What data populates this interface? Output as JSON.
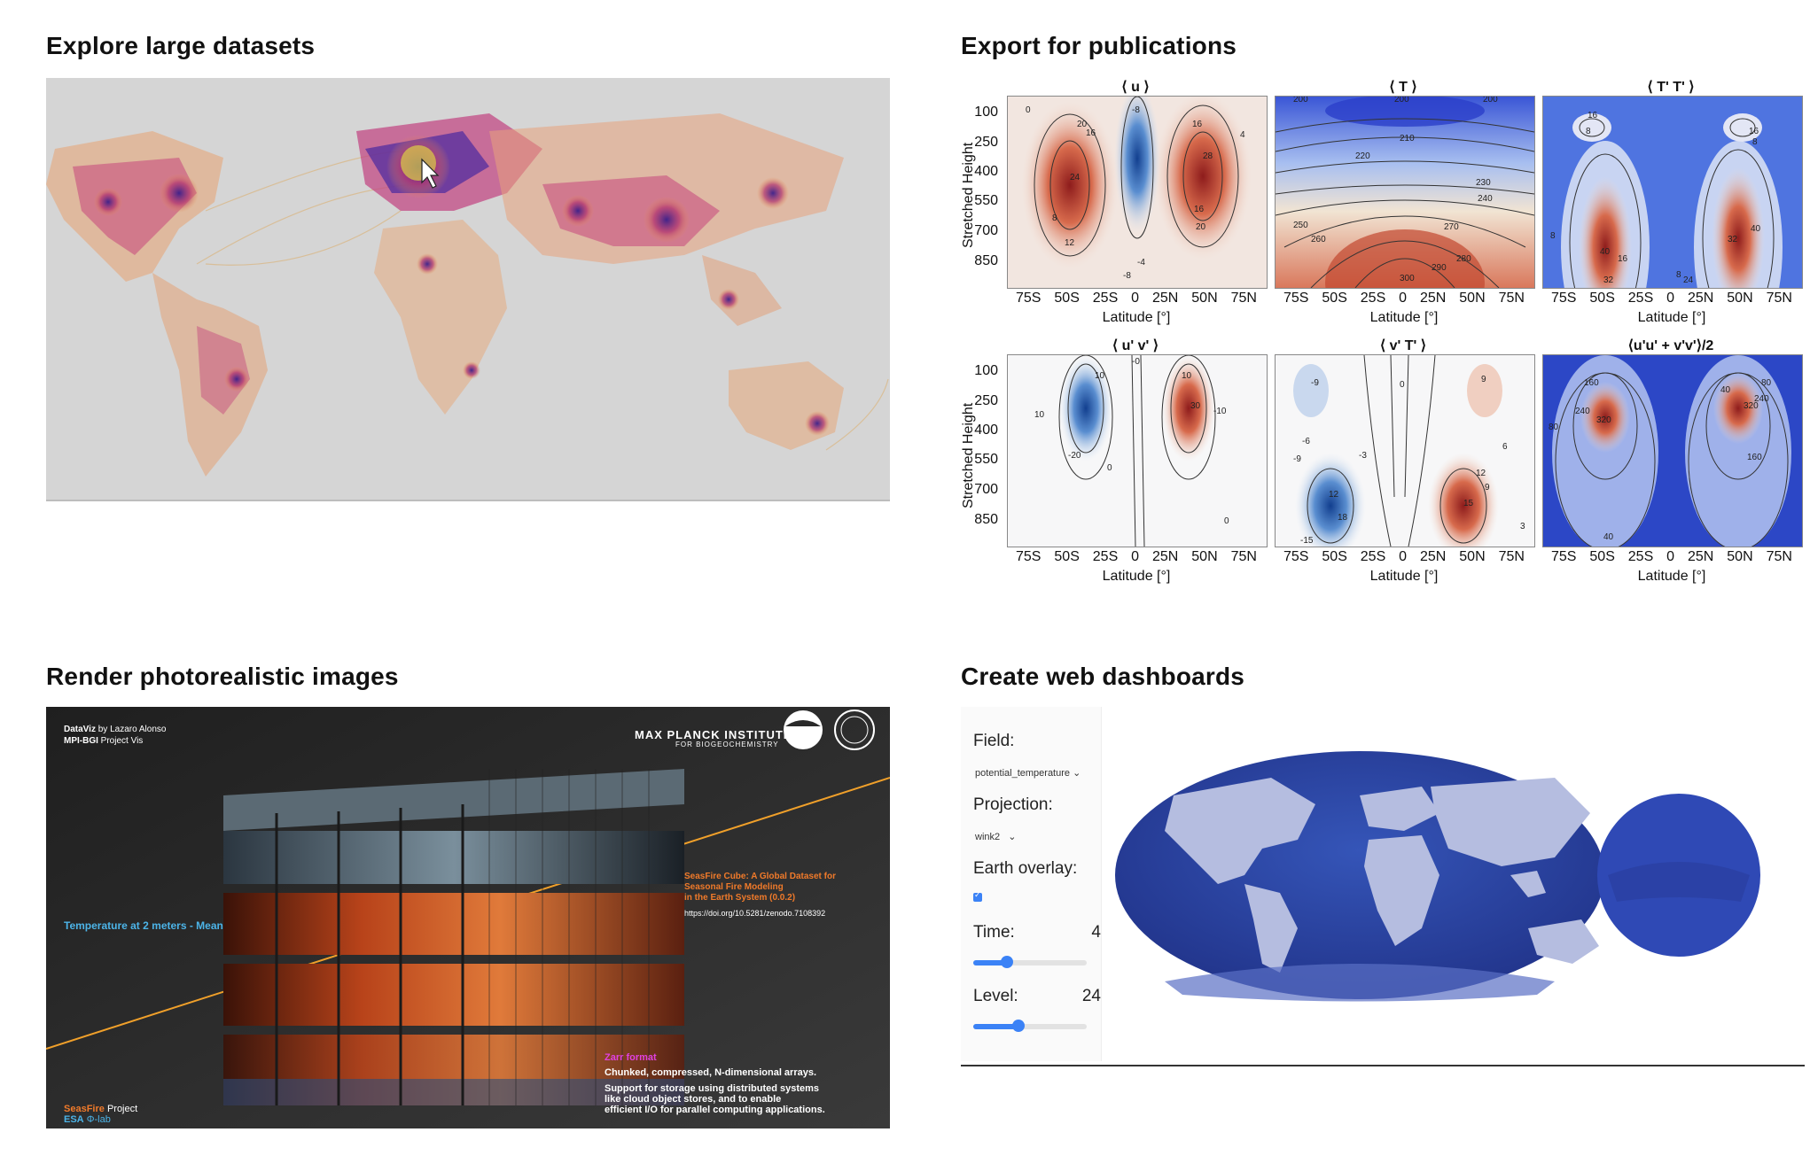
{
  "headings": {
    "explore": "Explore large datasets",
    "export": "Export for publications",
    "render": "Render photorealistic images",
    "dashboards": "Create web dashboards"
  },
  "publications": {
    "ylabel": "Stretched Height",
    "xlabel": "Latitude [°]",
    "yticks": [
      "100",
      "250",
      "400",
      "550",
      "700",
      "850"
    ],
    "xticks": [
      "75S",
      "50S",
      "25S",
      "0",
      "25N",
      "50N",
      "75N"
    ],
    "plots": [
      {
        "title": "⟨ u ⟩"
      },
      {
        "title": "⟨ T ⟩"
      },
      {
        "title": "⟨ T' T' ⟩"
      },
      {
        "title": "⟨ u' v' ⟩"
      },
      {
        "title": "⟨ v' T' ⟩"
      },
      {
        "title": "⟨u'u' + v'v'⟩/2"
      }
    ],
    "contour_labels": {
      "u": [
        "0",
        "20",
        "16",
        "8",
        "4",
        "24",
        "12",
        "-4",
        "-8",
        "28"
      ],
      "T": [
        "200",
        "210",
        "220",
        "230",
        "240",
        "250",
        "260",
        "270",
        "280",
        "290",
        "300"
      ],
      "TT": [
        "16",
        "8",
        "40",
        "32",
        "24"
      ],
      "uv": [
        "10",
        "-10",
        "-20",
        "30",
        "0"
      ],
      "vT": [
        "-9",
        "-6",
        "-3",
        "0",
        "3",
        "6",
        "9",
        "12",
        "15",
        "-15",
        "-12",
        "18"
      ],
      "ke": [
        "160",
        "240",
        "320",
        "80",
        "40"
      ]
    }
  },
  "render": {
    "credit_line1_bold": "DataViz",
    "credit_line1": "by Lazaro Alonso",
    "credit_line2_bold": "MPI-BGI",
    "credit_line2": "Project Vis",
    "institute": "MAX PLANCK INSTITUTE",
    "institute_sub": "FOR BIOGEOCHEMISTRY",
    "variable_label": "Temperature at 2 meters - Mean",
    "cube_title_1": "SeasFire Cube: A Global Dataset for",
    "cube_title_2": "Seasonal Fire Modeling",
    "cube_title_3": "in the Earth System (0.0.2)",
    "doi": "https://doi.org/10.5281/zenodo.7108392",
    "zarr_title": "Zarr format",
    "zarr_line1": "Chunked, compressed, N-dimensional arrays.",
    "zarr_line2": "Support for storage using distributed systems",
    "zarr_line3": "like cloud object stores, and to enable",
    "zarr_line4": "efficient I/O for parallel computing applications.",
    "project_a": "SeasFire",
    "project_b": "Project",
    "esa_a": "ESA",
    "esa_b": "Φ-lab",
    "colors": {
      "orange": "#f07a2a",
      "blue": "#4cb4e8",
      "magenta": "#e040e0"
    }
  },
  "dashboard": {
    "field_label": "Field:",
    "field_value": "potential_temperature",
    "projection_label": "Projection:",
    "projection_value": "wink2",
    "overlay_label": "Earth overlay:",
    "overlay_checked": true,
    "time_label": "Time:",
    "time_value": "4",
    "time_fraction": 0.3,
    "level_label": "Level:",
    "level_value": "24",
    "level_fraction": 0.4
  }
}
